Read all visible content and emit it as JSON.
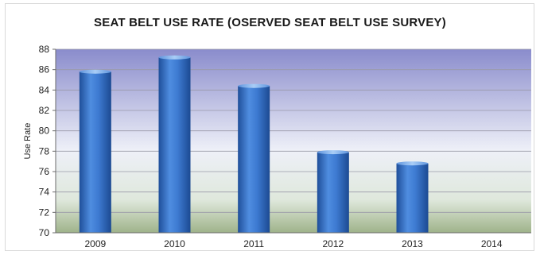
{
  "chart_data": {
    "type": "bar",
    "title": "SEAT BELT USE RATE (OSERVED SEAT BELT USE SURVEY)",
    "xlabel": "",
    "ylabel": "Use Rate",
    "categories": [
      "2009",
      "2010",
      "2011",
      "2012",
      "2013",
      "2014"
    ],
    "values": [
      85.8,
      87.2,
      84.4,
      77.9,
      76.8,
      null
    ],
    "ylim": [
      70,
      88
    ],
    "yticks": [
      70,
      72,
      74,
      76,
      78,
      80,
      82,
      84,
      86,
      88
    ],
    "grid": true,
    "legend": "none",
    "colors": {
      "bar": "#3d7ad1",
      "bar_dark": "#1f4f9a",
      "bar_light": "#7fb1ef",
      "plot_top": "#8a8ccc",
      "plot_mid": "#e9ecf7",
      "plot_bottom": "#9fb38a"
    }
  }
}
